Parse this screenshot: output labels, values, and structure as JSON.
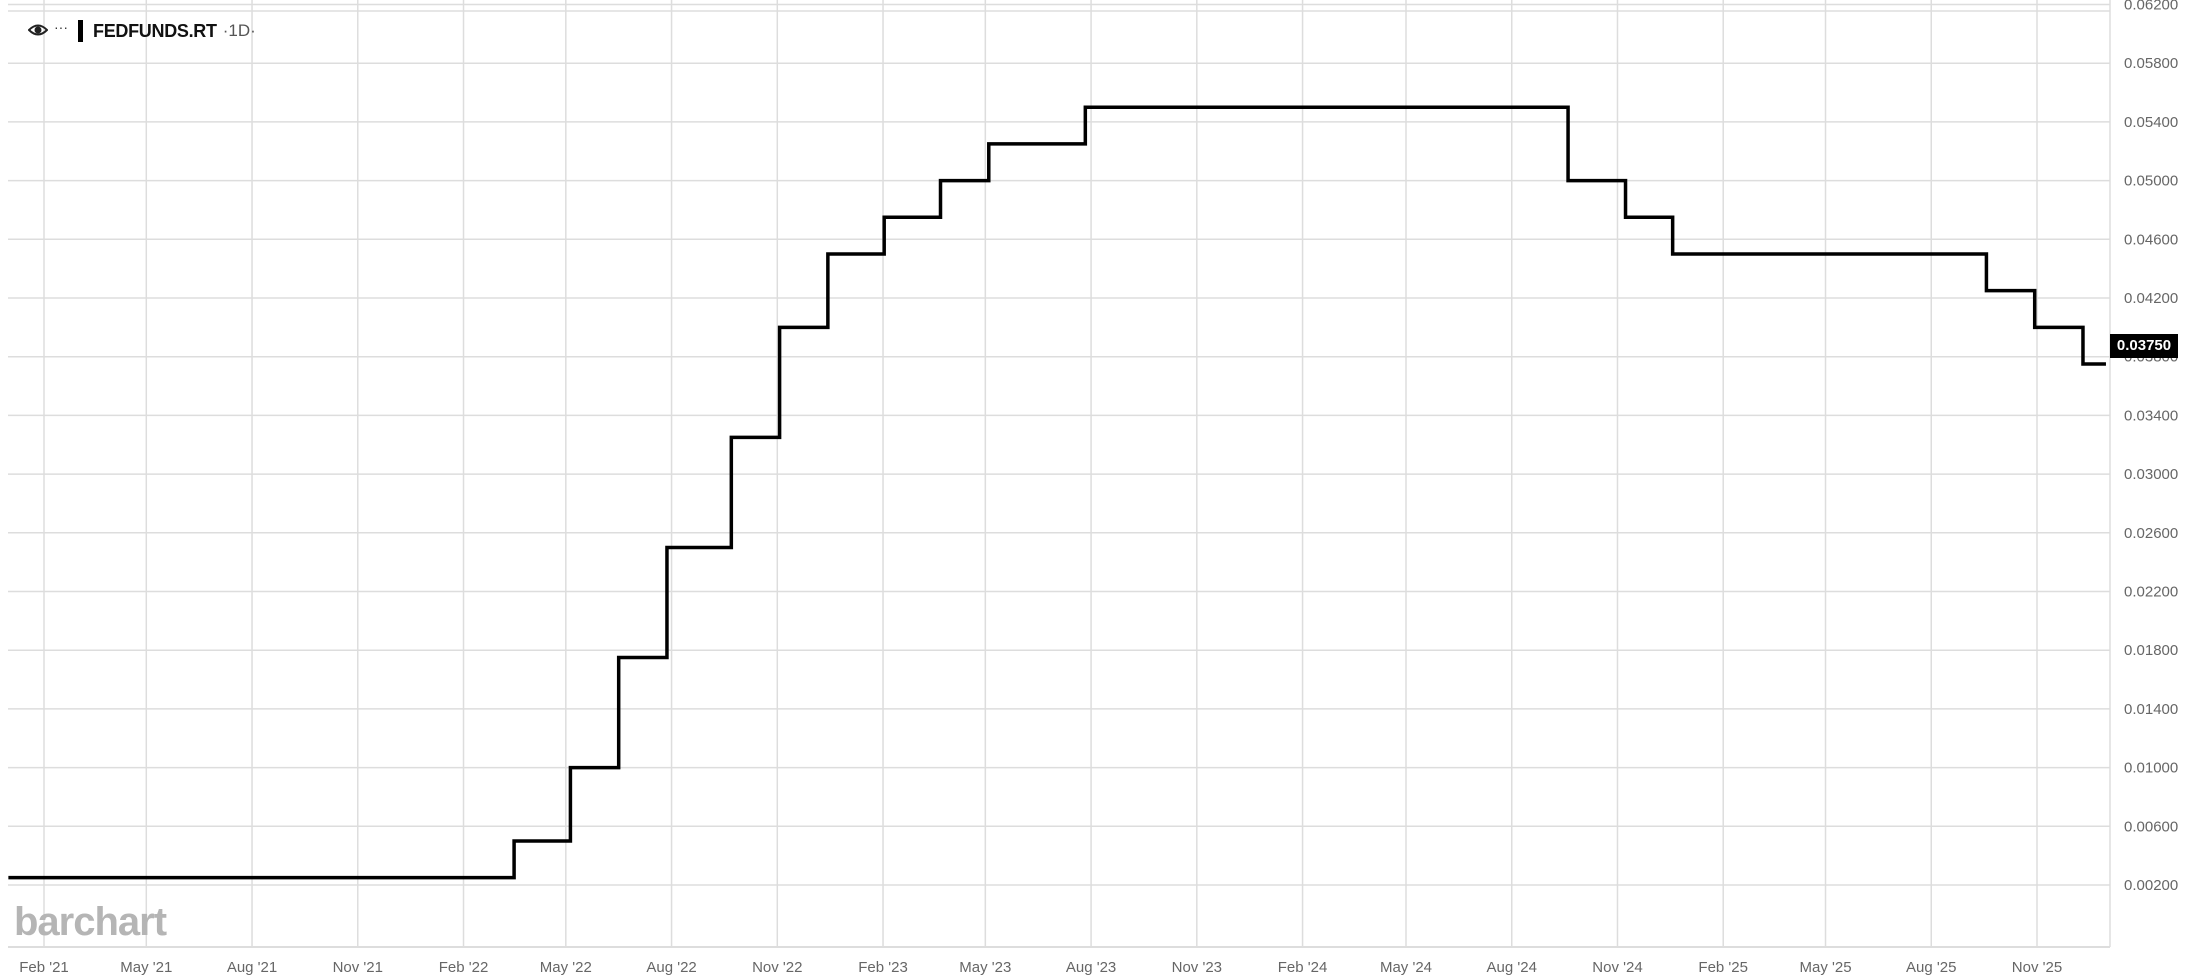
{
  "legend": {
    "symbol": "FEDFUNDS.RT",
    "timeframe": "·1D·",
    "more": "···",
    "icon": "eye-icon"
  },
  "logo": "barchart",
  "last_price_label": "0.03750",
  "colors": {
    "line": "#000000",
    "grid": "#dddddd",
    "axis_text": "#666666",
    "price_box": "#000000"
  },
  "chart_data": {
    "type": "line",
    "step": true,
    "x_ticks": [
      "Feb '21",
      "May '21",
      "Aug '21",
      "Nov '21",
      "Feb '22",
      "May '22",
      "Aug '22",
      "Nov '22",
      "Feb '23",
      "May '23",
      "Aug '23",
      "Nov '23",
      "Feb '24",
      "May '24",
      "Aug '24",
      "Nov '24",
      "Feb '25",
      "May '25",
      "Aug '25",
      "Nov '25"
    ],
    "x_tick_dates": [
      "2021-02-01",
      "2021-05-01",
      "2021-08-01",
      "2021-11-01",
      "2022-02-01",
      "2022-05-01",
      "2022-08-01",
      "2022-11-01",
      "2023-02-01",
      "2023-05-01",
      "2023-08-01",
      "2023-11-01",
      "2024-02-01",
      "2024-05-01",
      "2024-08-01",
      "2024-11-01",
      "2025-02-01",
      "2025-05-01",
      "2025-08-01",
      "2025-11-01"
    ],
    "y_ticks": [
      "0.00200",
      "0.00600",
      "0.01000",
      "0.01400",
      "0.01800",
      "0.02200",
      "0.02600",
      "0.03000",
      "0.03400",
      "0.03800",
      "0.04200",
      "0.04600",
      "0.05000",
      "0.05400",
      "0.05800",
      "0.06200"
    ],
    "ylim": [
      0.002,
      0.062
    ],
    "y_axis_position": "right",
    "grid": true,
    "points": [
      {
        "date": "2021-01-01",
        "value": 0.0025
      },
      {
        "date": "2022-03-17",
        "value": 0.005
      },
      {
        "date": "2022-05-05",
        "value": 0.01
      },
      {
        "date": "2022-06-16",
        "value": 0.0175
      },
      {
        "date": "2022-07-28",
        "value": 0.025
      },
      {
        "date": "2022-09-22",
        "value": 0.0325
      },
      {
        "date": "2022-11-03",
        "value": 0.04
      },
      {
        "date": "2022-12-15",
        "value": 0.045
      },
      {
        "date": "2023-02-02",
        "value": 0.0475
      },
      {
        "date": "2023-03-23",
        "value": 0.05
      },
      {
        "date": "2023-05-04",
        "value": 0.0525
      },
      {
        "date": "2023-07-27",
        "value": 0.055
      },
      {
        "date": "2024-09-19",
        "value": 0.05
      },
      {
        "date": "2024-11-08",
        "value": 0.0475
      },
      {
        "date": "2024-12-19",
        "value": 0.045
      },
      {
        "date": "2025-09-18",
        "value": 0.0425
      },
      {
        "date": "2025-10-30",
        "value": 0.04
      },
      {
        "date": "2025-12-11",
        "value": 0.0375
      },
      {
        "date": "2025-12-31",
        "value": 0.0375
      }
    ]
  }
}
